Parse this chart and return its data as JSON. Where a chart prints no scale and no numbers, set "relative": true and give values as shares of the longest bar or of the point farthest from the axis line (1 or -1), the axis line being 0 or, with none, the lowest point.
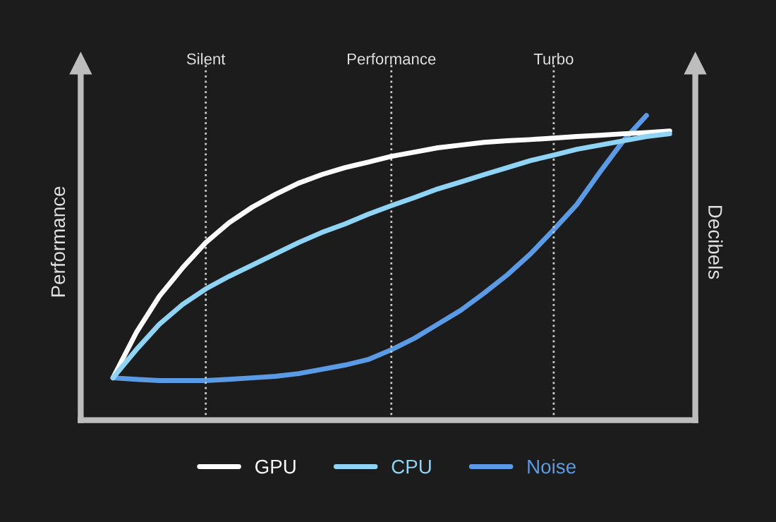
{
  "chart_data": {
    "type": "line",
    "relative": true,
    "ylabel": "Performance",
    "y2label": "Decibels",
    "tick_labels": "x",
    "grid": "x",
    "legend": "bottom",
    "marker": "none",
    "line_style": "solid",
    "categories": [
      null,
      null,
      null,
      null,
      "Silent",
      null,
      null,
      null,
      null,
      null,
      null,
      null,
      "Performance",
      null,
      null,
      null,
      null,
      null,
      null,
      "Turbo",
      null,
      null,
      null,
      null,
      null
    ],
    "series": [
      {
        "name": "GPU",
        "color": "#ffffff",
        "values": [
          0.139,
          0.287,
          0.407,
          0.5,
          0.583,
          0.648,
          0.699,
          0.741,
          0.778,
          0.806,
          0.829,
          0.847,
          0.866,
          0.88,
          0.894,
          0.903,
          0.912,
          0.917,
          0.921,
          0.926,
          0.931,
          0.935,
          0.94,
          0.944,
          0.949
        ]
      },
      {
        "name": "CPU",
        "color": "#8fd3f5",
        "values": [
          0.139,
          0.231,
          0.315,
          0.38,
          0.431,
          0.472,
          0.509,
          0.546,
          0.583,
          0.616,
          0.644,
          0.676,
          0.704,
          0.731,
          0.759,
          0.782,
          0.806,
          0.829,
          0.852,
          0.87,
          0.889,
          0.903,
          0.917,
          0.931,
          0.94
        ]
      },
      {
        "name": "Noise",
        "color": "#5b9be6",
        "axis": "y2",
        "values": [
          0.139,
          0.134,
          0.13,
          0.13,
          0.13,
          0.134,
          0.139,
          0.144,
          0.153,
          0.167,
          0.181,
          0.199,
          0.231,
          0.269,
          0.315,
          0.361,
          0.417,
          0.477,
          0.546,
          0.625,
          0.708,
          0.815,
          0.917,
          1.0,
          null
        ]
      }
    ]
  }
}
